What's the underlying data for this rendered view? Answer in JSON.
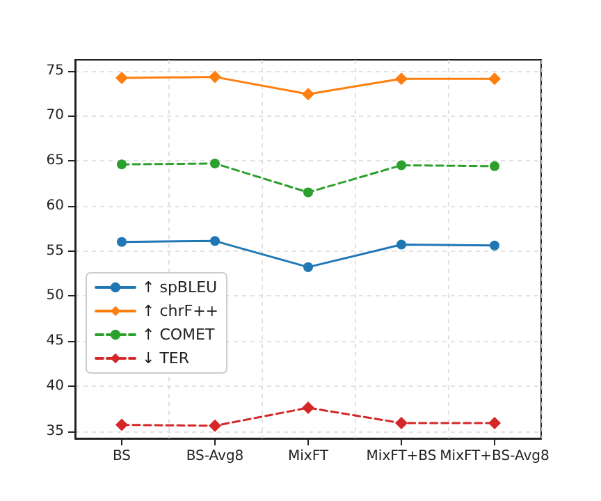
{
  "chart_data": {
    "type": "line",
    "categories": [
      "BS",
      "BS-Avg8",
      "MixFT",
      "MixFT+BS",
      "MixFT+BS-Avg8"
    ],
    "series": [
      {
        "name": "↑ spBLEU",
        "color": "#1f77b4",
        "marker": "circle",
        "line_style": "solid",
        "values": [
          56.0,
          56.1,
          53.2,
          55.7,
          55.6
        ]
      },
      {
        "name": "↑ chrF++",
        "color": "#ff7f0e",
        "marker": "diamond",
        "line_style": "solid",
        "values": [
          74.2,
          74.3,
          72.4,
          74.1,
          74.1
        ]
      },
      {
        "name": "↑ COMET",
        "color": "#2ca02c",
        "marker": "circle",
        "line_style": "dashed",
        "values": [
          64.6,
          64.7,
          61.5,
          64.5,
          64.4
        ]
      },
      {
        "name": "↓ TER",
        "color": "#d62728",
        "marker": "diamond",
        "line_style": "dashed",
        "values": [
          35.7,
          35.6,
          37.6,
          35.9,
          35.9
        ]
      }
    ],
    "ylim": [
      34.2,
      76.2
    ],
    "yticks": [
      35,
      40,
      45,
      50,
      55,
      60,
      65,
      70,
      75
    ],
    "grid": true,
    "legend": "left"
  }
}
